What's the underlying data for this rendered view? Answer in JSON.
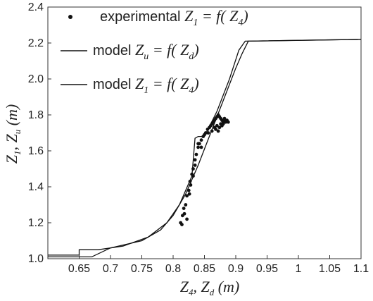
{
  "chart_data": {
    "type": "scatter",
    "xlabel": "Z4, Zd (m)",
    "ylabel": "Z1, Zu (m)",
    "xlim": [
      0.6,
      1.1
    ],
    "ylim": [
      1.0,
      2.4
    ],
    "x_ticks": [
      0.65,
      0.7,
      0.75,
      0.8,
      0.85,
      0.9,
      0.95,
      1.0,
      1.05,
      1.1
    ],
    "x_tick_labels": [
      "0.65",
      "0.7",
      "0.75",
      "0.8",
      "0.85",
      "0.9",
      "0.95",
      "1",
      "1.05",
      "1.1"
    ],
    "y_ticks": [
      1.0,
      1.2,
      1.4,
      1.6,
      1.8,
      2.0,
      2.2,
      2.4
    ],
    "y_tick_labels": [
      "1.0",
      "1.2",
      "1.4",
      "1.6",
      "1.8",
      "2.0",
      "2.2",
      "2.4"
    ],
    "grid": false,
    "legend_position": "top-left",
    "legend": [
      {
        "prefix": "experimental ",
        "formula": "Z1 = f( Z4)"
      },
      {
        "prefix": "model ",
        "formula": "Zu = f( Zd)"
      },
      {
        "prefix": "model ",
        "formula": "Z1 = f( Z4)"
      }
    ],
    "series": [
      {
        "name": "experimental Z1 = f( Z4)",
        "kind": "scatter",
        "color": "#111111",
        "x": [
          0.812,
          0.815,
          0.817,
          0.82,
          0.822,
          0.825,
          0.827,
          0.83,
          0.832,
          0.835,
          0.837,
          0.84,
          0.842,
          0.845,
          0.848,
          0.85,
          0.852,
          0.855,
          0.858,
          0.86,
          0.862,
          0.864,
          0.866,
          0.868,
          0.87,
          0.872,
          0.874,
          0.876,
          0.878,
          0.88,
          0.882,
          0.884,
          0.886,
          0.888,
          0.878,
          0.874,
          0.868,
          0.88,
          0.864,
          0.872,
          0.845,
          0.835,
          0.828,
          0.818,
          0.822,
          0.84,
          0.856,
          0.862,
          0.87,
          0.876,
          0.866,
          0.882,
          0.832,
          0.826,
          0.814
        ],
        "y": [
          1.2,
          1.24,
          1.28,
          1.3,
          1.35,
          1.38,
          1.43,
          1.47,
          1.5,
          1.55,
          1.58,
          1.62,
          1.64,
          1.66,
          1.68,
          1.69,
          1.7,
          1.72,
          1.73,
          1.74,
          1.75,
          1.76,
          1.77,
          1.78,
          1.79,
          1.8,
          1.79,
          1.78,
          1.77,
          1.76,
          1.77,
          1.76,
          1.77,
          1.76,
          1.74,
          1.73,
          1.72,
          1.75,
          1.76,
          1.71,
          1.62,
          1.52,
          1.41,
          1.25,
          1.22,
          1.64,
          1.7,
          1.71,
          1.74,
          1.75,
          1.73,
          1.78,
          1.46,
          1.36,
          1.19
        ]
      },
      {
        "name": "model Zu = f( Zd)",
        "kind": "line",
        "color": "#111111",
        "x": [
          0.6,
          0.67,
          0.7,
          0.75,
          0.78,
          0.8,
          0.82,
          0.84,
          0.86,
          0.88,
          0.9,
          0.91,
          0.92,
          1.1
        ],
        "y": [
          1.01,
          1.01,
          1.06,
          1.1,
          1.16,
          1.24,
          1.36,
          1.52,
          1.7,
          1.88,
          2.06,
          2.14,
          2.21,
          2.22
        ]
      },
      {
        "name": "model Z1 = f( Z4)",
        "kind": "line",
        "color": "#111111",
        "x": [
          0.6,
          0.65,
          0.65,
          0.68,
          0.72,
          0.76,
          0.79,
          0.81,
          0.83,
          0.835,
          0.84,
          0.85,
          0.87,
          0.89,
          0.905,
          0.915,
          1.1
        ],
        "y": [
          1.02,
          1.02,
          1.05,
          1.05,
          1.07,
          1.12,
          1.2,
          1.3,
          1.46,
          1.67,
          1.68,
          1.68,
          1.82,
          2.0,
          2.16,
          2.21,
          2.22
        ]
      }
    ]
  }
}
